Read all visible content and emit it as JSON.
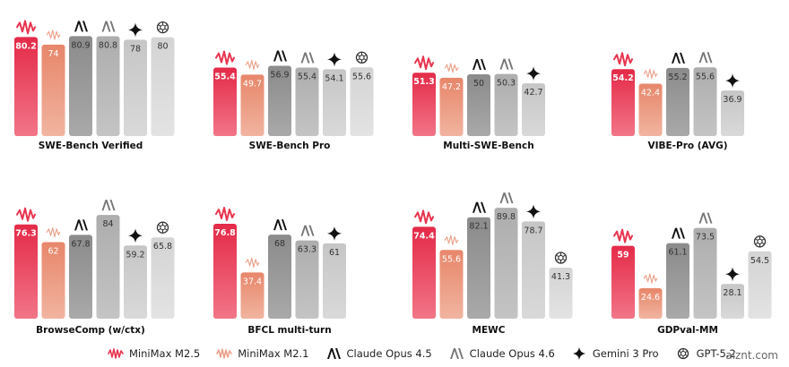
{
  "chart_data": [
    {
      "type": "bar",
      "title": "SWE-Bench Verified",
      "categories": [
        "MiniMax M2.5",
        "MiniMax M2.1",
        "Claude Opus 4.5",
        "Claude Opus 4.6",
        "Gemini 3 Pro",
        "GPT-5.2"
      ],
      "values": [
        80.2,
        74,
        80.9,
        80.8,
        78,
        80
      ],
      "labels": [
        "80.2",
        "74",
        "80.9",
        "80.8",
        "78",
        "80"
      ],
      "ylim": [
        0,
        100
      ]
    },
    {
      "type": "bar",
      "title": "SWE-Bench Pro",
      "categories": [
        "MiniMax M2.5",
        "MiniMax M2.1",
        "Claude Opus 4.5",
        "Claude Opus 4.6",
        "Gemini 3 Pro",
        "GPT-5.2"
      ],
      "values": [
        55.4,
        49.7,
        56.9,
        55.4,
        54.1,
        55.6
      ],
      "labels": [
        "55.4",
        "49.7",
        "56.9",
        "55.4",
        "54.1",
        "55.6"
      ],
      "ylim": [
        0,
        100
      ]
    },
    {
      "type": "bar",
      "title": "Multi-SWE-Bench",
      "categories": [
        "MiniMax M2.5",
        "MiniMax M2.1",
        "Claude Opus 4.5",
        "Claude Opus 4.6",
        "Gemini 3 Pro"
      ],
      "values": [
        51.3,
        47.2,
        50,
        50.3,
        42.7
      ],
      "labels": [
        "51.3",
        "47.2",
        "50",
        "50.3",
        "42.7"
      ],
      "ylim": [
        0,
        100
      ]
    },
    {
      "type": "bar",
      "title": "VIBE-Pro (AVG)",
      "categories": [
        "MiniMax M2.5",
        "MiniMax M2.1",
        "Claude Opus 4.5",
        "Claude Opus 4.6",
        "Gemini 3 Pro"
      ],
      "values": [
        54.2,
        42.4,
        55.2,
        55.6,
        36.9
      ],
      "labels": [
        "54.2",
        "42.4",
        "55.2",
        "55.6",
        "36.9"
      ],
      "ylim": [
        0,
        100
      ]
    },
    {
      "type": "bar",
      "title": "BrowseComp (w/ctx)",
      "categories": [
        "MiniMax M2.5",
        "MiniMax M2.1",
        "Claude Opus 4.5",
        "Claude Opus 4.6",
        "Gemini 3 Pro",
        "GPT-5.2"
      ],
      "values": [
        76.3,
        62,
        67.8,
        84,
        59.2,
        65.8
      ],
      "labels": [
        "76.3",
        "62",
        "67.8",
        "84",
        "59.2",
        "65.8"
      ],
      "ylim": [
        0,
        100
      ]
    },
    {
      "type": "bar",
      "title": "BFCL multi-turn",
      "categories": [
        "MiniMax M2.5",
        "MiniMax M2.1",
        "Claude Opus 4.5",
        "Claude Opus 4.6",
        "Gemini 3 Pro"
      ],
      "values": [
        76.8,
        37.4,
        68,
        63.3,
        61
      ],
      "labels": [
        "76.8",
        "37.4",
        "68",
        "63.3",
        "61"
      ],
      "ylim": [
        0,
        100
      ]
    },
    {
      "type": "bar",
      "title": "MEWC",
      "categories": [
        "MiniMax M2.5",
        "MiniMax M2.1",
        "Claude Opus 4.5",
        "Claude Opus 4.6",
        "Gemini 3 Pro",
        "GPT-5.2"
      ],
      "values": [
        74.4,
        55.6,
        82.1,
        89.8,
        78.7,
        41.3
      ],
      "labels": [
        "74.4",
        "55.6",
        "82.1",
        "89.8",
        "78.7",
        "41.3"
      ],
      "ylim": [
        0,
        100
      ]
    },
    {
      "type": "bar",
      "title": "GDPval-MM",
      "categories": [
        "MiniMax M2.5",
        "MiniMax M2.1",
        "Claude Opus 4.5",
        "Claude Opus 4.6",
        "Gemini 3 Pro",
        "GPT-5.2"
      ],
      "values": [
        59,
        24.6,
        61.1,
        73.5,
        28.1,
        54.5
      ],
      "labels": [
        "59",
        "24.6",
        "61.1",
        "73.5",
        "28.1",
        "54.5"
      ],
      "ylim": [
        0,
        100
      ]
    }
  ],
  "legend": [
    {
      "name": "MiniMax M2.5",
      "icon": "minimax-icon",
      "color": "#e8344f"
    },
    {
      "name": "MiniMax M2.1",
      "icon": "minimax-light-icon",
      "color": "#e98a70"
    },
    {
      "name": "Claude Opus 4.5",
      "icon": "anthropic-icon",
      "color": "#8a8a8a"
    },
    {
      "name": "Claude Opus 4.6",
      "icon": "anthropic-light-icon",
      "color": "#b4b4b4"
    },
    {
      "name": "Gemini 3 Pro",
      "icon": "gemini-icon",
      "color": "#cdcdcd"
    },
    {
      "name": "GPT-5.2",
      "icon": "openai-icon",
      "color": "#dcdcdc"
    }
  ],
  "watermark": "aiznt.com"
}
